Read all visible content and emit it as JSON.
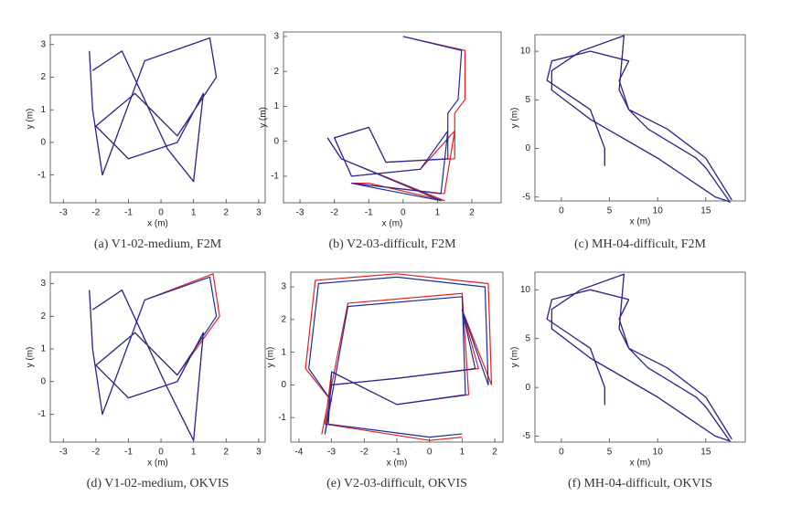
{
  "chart_data": [
    {
      "type": "line",
      "caption": "(a) V1-02-medium, F2M",
      "xlabel": "x (m)",
      "ylabel": "y (m)",
      "xlim": [
        -3.4,
        3.2
      ],
      "ylim": [
        -1.85,
        3.3
      ],
      "xticks": [
        -3,
        -2,
        -1,
        0,
        1,
        2,
        3
      ],
      "yticks": [
        -1,
        0,
        1,
        2,
        3
      ],
      "series": [
        {
          "color": "#e02020",
          "x": [
            -2.2,
            -2.1,
            -1.8,
            -0.5,
            1.5,
            1.7,
            0.5,
            -0.8,
            -2,
            -1,
            0.5,
            1.3,
            1,
            0.2,
            -1.2,
            -2.1
          ],
          "values": [
            2.8,
            1,
            -1,
            2.5,
            3.2,
            2,
            0.2,
            1.5,
            0.5,
            -0.5,
            0,
            1.5,
            -1.2,
            -0.2,
            2.8,
            2.2
          ]
        },
        {
          "color": "#1c2a9c",
          "x": [
            -2.2,
            -2.1,
            -1.8,
            -0.5,
            1.5,
            1.7,
            0.5,
            -0.8,
            -2,
            -1,
            0.5,
            1.3,
            1,
            0.2,
            -1.2,
            -2.1
          ],
          "values": [
            2.8,
            1,
            -1,
            2.5,
            3.2,
            2,
            0.2,
            1.5,
            0.5,
            -0.5,
            0,
            1.5,
            -1.2,
            -0.2,
            2.8,
            2.2
          ]
        }
      ]
    },
    {
      "type": "line",
      "caption": "(b) V2-03-difficult, F2M",
      "xlabel": "x (m)",
      "ylabel": "y (m)",
      "xlim": [
        -3.48,
        2.85
      ],
      "ylim": [
        -1.76,
        3.13
      ],
      "xticks": [
        -3,
        -2,
        -1,
        0,
        1,
        2
      ],
      "yticks": [
        -1,
        0,
        1,
        2,
        3
      ],
      "series": [
        {
          "color": "#e02020",
          "x": [
            0,
            1.8,
            1.8,
            1.5,
            1.5,
            -0.5,
            -1,
            -2,
            -1.5,
            0.5,
            1.5,
            1.2,
            -1.5,
            -1,
            1.2,
            -1.8,
            -2.2
          ],
          "values": [
            3,
            2.6,
            1.2,
            0.8,
            -0.5,
            -0.6,
            0.4,
            0.1,
            -1,
            -0.8,
            0.3,
            -1.5,
            -1.2,
            -1.2,
            -1.7,
            -0.5,
            0.1
          ]
        },
        {
          "color": "#1c2a9c",
          "x": [
            0,
            1.7,
            1.6,
            1.3,
            1.3,
            -0.5,
            -1,
            -2,
            -1.5,
            0.5,
            1.3,
            1.1,
            -1.5,
            -1,
            1.1,
            -1.8,
            -2.2
          ],
          "values": [
            3,
            2.6,
            1.2,
            0.8,
            -0.5,
            -0.6,
            0.4,
            0.1,
            -1,
            -0.8,
            0.3,
            -1.5,
            -1.2,
            -1.3,
            -1.7,
            -0.5,
            0.1
          ]
        }
      ]
    },
    {
      "type": "line",
      "caption": "(c) MH-04-difficult, F2M",
      "xlabel": "x (m)",
      "ylabel": "y (m)",
      "xlim": [
        -2.75,
        19.1
      ],
      "ylim": [
        -5.4,
        11.7
      ],
      "xticks": [
        0,
        5,
        10,
        15
      ],
      "yticks": [
        -5,
        0,
        5,
        10
      ],
      "series": [
        {
          "color": "#e02020",
          "x": [
            4.5,
            4.5,
            3,
            -1.5,
            -1,
            3,
            7,
            6,
            7,
            9,
            14,
            15,
            17.5,
            16,
            10,
            3,
            -1,
            -1,
            2,
            6.5,
            6,
            7,
            11,
            15,
            17.7
          ],
          "values": [
            -1.8,
            0,
            4,
            7,
            9,
            10,
            9,
            7,
            4,
            2,
            -1,
            -2,
            -5.5,
            -5,
            -1,
            3,
            6,
            8,
            10,
            11.6,
            6,
            4,
            2,
            -1,
            -5.3
          ]
        },
        {
          "color": "#1c2a9c",
          "x": [
            4.5,
            4.5,
            3,
            -1.5,
            -1,
            3,
            7,
            6,
            7,
            9,
            14,
            15,
            17.5,
            16,
            10,
            3,
            -1,
            -1,
            2,
            6.5,
            6,
            7,
            11,
            15,
            17.7
          ],
          "values": [
            -1.8,
            0,
            4,
            7,
            9,
            10,
            9,
            7,
            4,
            2,
            -1,
            -2,
            -5.5,
            -5,
            -1,
            3,
            6,
            8,
            10,
            11.6,
            6,
            4,
            2,
            -1,
            -5.3
          ]
        }
      ]
    },
    {
      "type": "line",
      "caption": "(d) V1-02-medium, OKVIS",
      "xlabel": "x (m)",
      "ylabel": "y (m)",
      "xlim": [
        -3.4,
        3.2
      ],
      "ylim": [
        -1.85,
        3.35
      ],
      "xticks": [
        -3,
        -2,
        -1,
        0,
        1,
        2,
        3
      ],
      "yticks": [
        -1,
        0,
        1,
        2,
        3
      ],
      "series": [
        {
          "color": "#e02020",
          "x": [
            -2.2,
            -2.1,
            -1.8,
            -0.5,
            1.6,
            1.8,
            0.5,
            -0.8,
            -2,
            -1,
            0.5,
            1.3,
            1,
            0.2,
            -1.2,
            -2.1
          ],
          "values": [
            2.8,
            1,
            -1,
            2.5,
            3.3,
            2,
            0.2,
            1.5,
            0.5,
            -0.5,
            0,
            1.5,
            -1.8,
            -0.2,
            2.8,
            2.2
          ]
        },
        {
          "color": "#1c2a9c",
          "x": [
            -2.2,
            -2.1,
            -1.8,
            -0.5,
            1.5,
            1.7,
            0.5,
            -0.8,
            -2,
            -1,
            0.5,
            1.3,
            1,
            0.2,
            -1.2,
            -2.1
          ],
          "values": [
            2.8,
            1,
            -1,
            2.5,
            3.2,
            2,
            0.2,
            1.5,
            0.5,
            -0.5,
            0,
            1.5,
            -1.8,
            -0.2,
            2.8,
            2.2
          ]
        }
      ]
    },
    {
      "type": "line",
      "caption": "(e) V2-03-difficult, OKVIS",
      "xlabel": "x (m)",
      "ylabel": "y (m)",
      "xlim": [
        -4.25,
        2.25
      ],
      "ylim": [
        -1.75,
        3.45
      ],
      "xticks": [
        -4,
        -3,
        -2,
        -1,
        0,
        1,
        2
      ],
      "yticks": [
        -1,
        0,
        1,
        2,
        3
      ],
      "series": [
        {
          "color": "#e02020",
          "x": [
            -3,
            -3.8,
            -3.5,
            -1,
            1.8,
            1.9,
            1,
            1.5,
            -1,
            -3,
            -3.3,
            -2.5,
            1,
            1.2,
            -1,
            -3,
            -3.2,
            0,
            1
          ],
          "values": [
            -0.5,
            0.5,
            3.2,
            3.4,
            3.1,
            0,
            2.3,
            0.5,
            0.2,
            0,
            -1.5,
            2.5,
            2.8,
            -0.3,
            -0.6,
            0.4,
            -1.2,
            -1.7,
            -1.6
          ]
        },
        {
          "color": "#1c2a9c",
          "x": [
            -3,
            -3.7,
            -3.4,
            -1,
            1.7,
            1.8,
            1,
            1.4,
            -1,
            -3,
            -3.2,
            -2.5,
            1,
            1.1,
            -1,
            -3,
            -3.1,
            0,
            1
          ],
          "values": [
            -0.5,
            0.5,
            3.1,
            3.3,
            3,
            0,
            2.3,
            0.5,
            0.2,
            0,
            -1.5,
            2.4,
            2.7,
            -0.3,
            -0.6,
            0.4,
            -1.2,
            -1.6,
            -1.5
          ]
        }
      ]
    },
    {
      "type": "line",
      "caption": "(f) MH-04-difficult, OKVIS",
      "xlabel": "x (m)",
      "ylabel": "y (m)",
      "xlim": [
        -2.75,
        19.1
      ],
      "ylim": [
        -5.6,
        11.8
      ],
      "xticks": [
        0,
        5,
        10,
        15
      ],
      "yticks": [
        -5,
        0,
        5,
        10
      ],
      "series": [
        {
          "color": "#e02020",
          "x": [
            4.5,
            4.5,
            3,
            -1.5,
            -1,
            3,
            7,
            6,
            7,
            9,
            14,
            15,
            17.5,
            16,
            10,
            3,
            -1,
            -1,
            2,
            6.5,
            6,
            7,
            11,
            15,
            17.7
          ],
          "values": [
            -1.8,
            0,
            4,
            7,
            9,
            10,
            9,
            7,
            4,
            2,
            -1,
            -2,
            -5.5,
            -5,
            -1,
            3,
            6,
            8,
            10,
            11.6,
            6,
            4,
            2,
            -1,
            -5.3
          ]
        },
        {
          "color": "#1c2a9c",
          "x": [
            4.5,
            4.5,
            3,
            -1.5,
            -1,
            3,
            7,
            6,
            7,
            9,
            14,
            15,
            17.5,
            16,
            10,
            3,
            -1,
            -1,
            2,
            6.5,
            6,
            7,
            11,
            15,
            17.7
          ],
          "values": [
            -1.8,
            0,
            4,
            7,
            9,
            10,
            9,
            7,
            4,
            2,
            -1,
            -2,
            -5.5,
            -5,
            -1,
            3,
            6,
            8,
            10,
            11.6,
            6,
            4,
            2,
            -1,
            -5.3
          ]
        }
      ]
    }
  ]
}
